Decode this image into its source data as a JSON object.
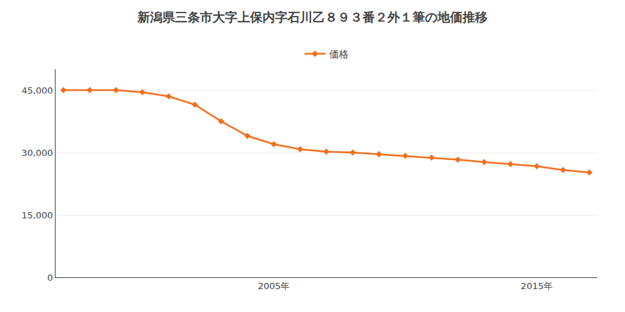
{
  "chart_data": {
    "type": "line",
    "title": "新潟県三条市大字上保内字石川乙８９３番２外１筆の地価推移",
    "x": [
      1997,
      1998,
      1999,
      2000,
      2001,
      2002,
      2003,
      2004,
      2005,
      2006,
      2007,
      2008,
      2009,
      2010,
      2011,
      2012,
      2013,
      2014,
      2015,
      2016,
      2017
    ],
    "series": [
      {
        "name": "価格",
        "color": "#f07020",
        "marker": "diamond",
        "values": [
          45000,
          45000,
          45000,
          44500,
          43500,
          41500,
          37500,
          34000,
          32000,
          30800,
          30200,
          30000,
          29600,
          29200,
          28800,
          28300,
          27700,
          27200,
          26700,
          25800,
          25200
        ]
      }
    ],
    "xlim": [
      1996.7,
      2017.3
    ],
    "xticks": [
      {
        "value": 2005,
        "label": "2005年"
      },
      {
        "value": 2015,
        "label": "2015年"
      }
    ],
    "ylim": [
      0,
      50000
    ],
    "yticks": [
      0,
      {
        "value": 15000,
        "label": "15,000"
      },
      {
        "value": 30000,
        "label": "30,000"
      },
      {
        "value": 45000,
        "label": "45,000"
      }
    ],
    "grid": true,
    "legend": "top"
  }
}
